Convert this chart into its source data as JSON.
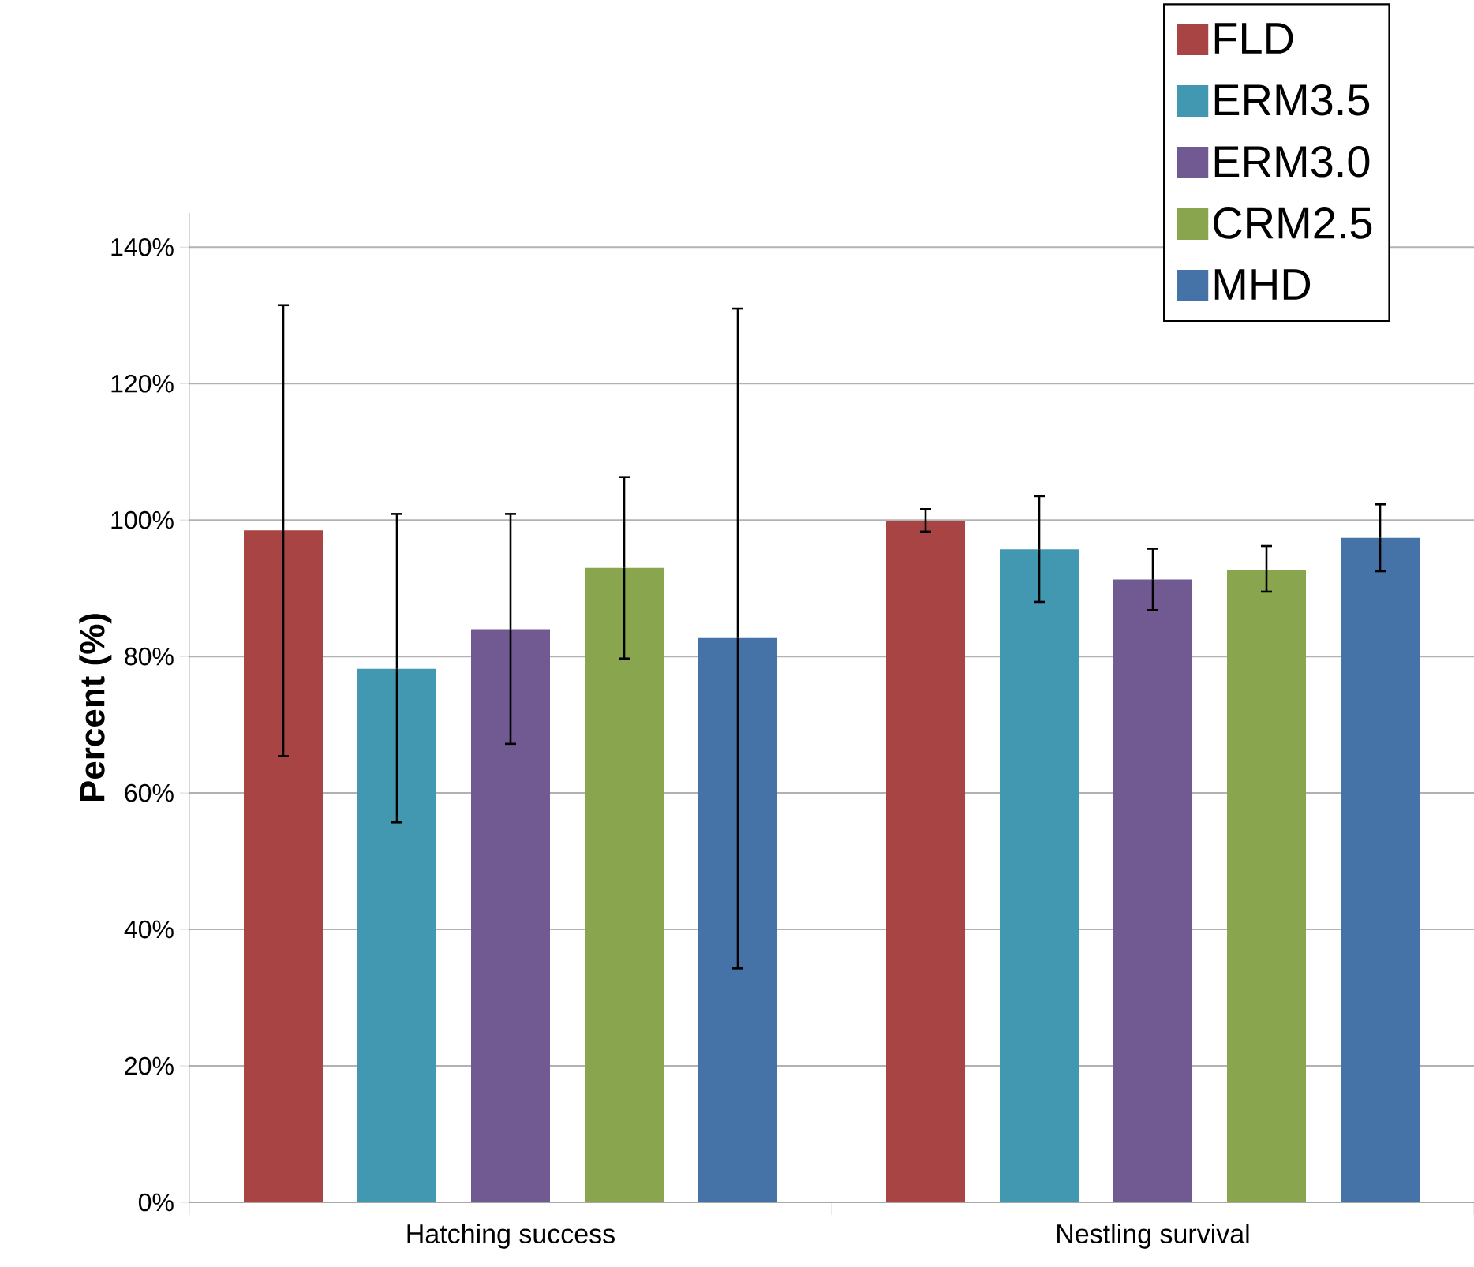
{
  "chart_data": {
    "type": "bar",
    "ylabel": "Percent (%)",
    "categories": [
      "Hatching success",
      "Nestling survival"
    ],
    "ylim": [
      0,
      145
    ],
    "yticks": [
      {
        "value": 0,
        "label": "0%"
      },
      {
        "value": 20,
        "label": "20%"
      },
      {
        "value": 40,
        "label": "40%"
      },
      {
        "value": 60,
        "label": "60%"
      },
      {
        "value": 80,
        "label": "80%"
      },
      {
        "value": 100,
        "label": "100%"
      },
      {
        "value": 120,
        "label": "120%"
      },
      {
        "value": 140,
        "label": "140%"
      }
    ],
    "grid": "y",
    "legend": "top right",
    "series": [
      {
        "name": "FLD",
        "color": "#a84443",
        "values": [
          98.5,
          99.9
        ],
        "errors": [
          [
            65.4,
            131.5
          ],
          [
            98.3,
            101.6
          ]
        ]
      },
      {
        "name": "ERM3.5",
        "color": "#4298b0",
        "values": [
          78.2,
          95.7
        ],
        "errors": [
          [
            55.7,
            100.9
          ],
          [
            88.0,
            103.5
          ]
        ]
      },
      {
        "name": "ERM3.0",
        "color": "#715a91",
        "values": [
          84.0,
          91.3
        ],
        "errors": [
          [
            67.2,
            100.9
          ],
          [
            86.8,
            95.8
          ]
        ]
      },
      {
        "name": "CRM2.5",
        "color": "#89a54e",
        "values": [
          93.0,
          92.7
        ],
        "errors": [
          [
            79.7,
            106.3
          ],
          [
            89.5,
            96.2
          ]
        ]
      },
      {
        "name": "MHD",
        "color": "#4572a7",
        "values": [
          82.7,
          97.4
        ],
        "errors": [
          [
            34.3,
            131.0
          ],
          [
            92.5,
            102.3
          ]
        ]
      }
    ]
  }
}
